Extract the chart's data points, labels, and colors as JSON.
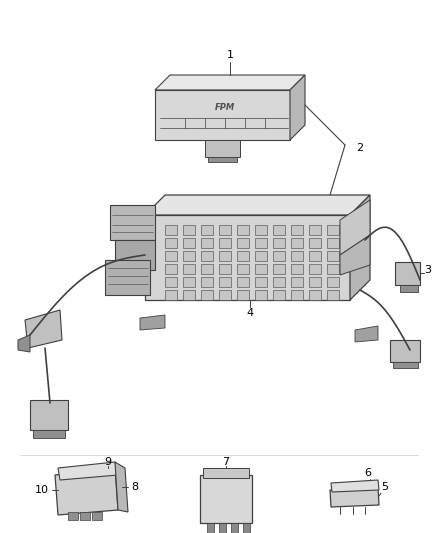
{
  "bg_color": "#ffffff",
  "fig_width": 4.38,
  "fig_height": 5.33,
  "dpi": 100,
  "line_color": "#404040",
  "text_color": "#000000",
  "light_gray": "#e0e0e0",
  "mid_gray": "#c0c0c0",
  "dark_gray": "#909090"
}
